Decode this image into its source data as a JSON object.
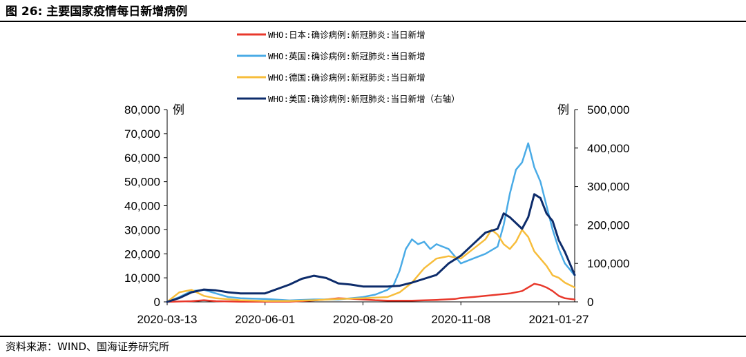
{
  "figure": {
    "title": "图 26:  主要国家疫情每日新增病例",
    "source": "资料来源：WIND、国海证券研究所"
  },
  "chart_data": {
    "type": "line",
    "title": "主要国家疫情每日新增病例",
    "left_axis": {
      "unit": "例",
      "range": [
        0,
        80000
      ],
      "ticks": [
        0,
        10000,
        20000,
        30000,
        40000,
        50000,
        60000,
        70000,
        80000
      ],
      "tick_labels": [
        "0",
        "10,000",
        "20,000",
        "30,000",
        "40,000",
        "50,000",
        "60,000",
        "70,000",
        "80,000"
      ]
    },
    "right_axis": {
      "unit": "例",
      "range": [
        0,
        500000
      ],
      "ticks": [
        0,
        100000,
        200000,
        300000,
        400000,
        500000
      ],
      "tick_labels": [
        "0",
        "100,000",
        "200,000",
        "300,000",
        "400,000",
        "500,000"
      ]
    },
    "x_axis": {
      "range_days": [
        0,
        333
      ],
      "start_date": "2020-03-13",
      "tick_days": [
        0,
        80,
        160,
        240,
        320
      ],
      "tick_labels": [
        "2020-03-13",
        "2020-06-01",
        "2020-08-20",
        "2020-11-08",
        "2021-01-27"
      ]
    },
    "legend_position": "top-center",
    "series": [
      {
        "name": "WHO:日本:确诊病例:新冠肺炎:当日新增",
        "color": "#e8382b",
        "axis": "left",
        "x": [
          0,
          20,
          30,
          40,
          60,
          80,
          100,
          120,
          130,
          140,
          150,
          160,
          170,
          180,
          200,
          220,
          235,
          240,
          250,
          260,
          270,
          280,
          290,
          295,
          300,
          305,
          310,
          315,
          320,
          325,
          333
        ],
        "y": [
          0,
          300,
          700,
          300,
          100,
          50,
          100,
          600,
          1000,
          1500,
          1300,
          1000,
          700,
          500,
          500,
          800,
          1200,
          1600,
          2000,
          2500,
          3000,
          3500,
          4500,
          6000,
          7500,
          7000,
          6000,
          4500,
          2500,
          1500,
          1000
        ]
      },
      {
        "name": "WHO:英国:确诊病例:新冠肺炎:当日新增",
        "color": "#4aabe6",
        "axis": "left",
        "x": [
          0,
          10,
          20,
          30,
          40,
          50,
          60,
          80,
          100,
          120,
          140,
          160,
          170,
          180,
          185,
          190,
          195,
          200,
          205,
          210,
          215,
          220,
          230,
          240,
          250,
          260,
          270,
          275,
          280,
          285,
          290,
          295,
          300,
          305,
          310,
          315,
          320,
          325,
          333
        ],
        "y": [
          0,
          2000,
          4500,
          5000,
          3500,
          2000,
          1500,
          1200,
          600,
          1000,
          1000,
          2000,
          3000,
          5000,
          7000,
          13000,
          22000,
          26000,
          24000,
          25000,
          22000,
          24000,
          22000,
          16000,
          18000,
          20000,
          23000,
          32000,
          45000,
          55000,
          58000,
          66000,
          56000,
          50000,
          40000,
          30000,
          22000,
          16000,
          11000
        ]
      },
      {
        "name": "WHO:德国:确诊病例:新冠肺炎:当日新增",
        "color": "#f7bd3b",
        "axis": "left",
        "x": [
          0,
          10,
          20,
          30,
          40,
          60,
          80,
          100,
          120,
          140,
          160,
          180,
          190,
          200,
          210,
          220,
          230,
          240,
          250,
          260,
          265,
          270,
          275,
          280,
          285,
          290,
          295,
          300,
          310,
          315,
          320,
          325,
          333
        ],
        "y": [
          0,
          4000,
          5000,
          2500,
          1500,
          700,
          400,
          400,
          700,
          1200,
          1500,
          2000,
          4000,
          8000,
          14000,
          18000,
          19000,
          18000,
          22000,
          26000,
          30000,
          28000,
          24000,
          22000,
          25000,
          30000,
          27000,
          21000,
          15000,
          11000,
          10000,
          8000,
          6000
        ]
      },
      {
        "name": "WHO:美国:确诊病例:新冠肺炎:当日新增（右轴）",
        "color": "#0d2c6b",
        "axis": "right",
        "x": [
          0,
          10,
          20,
          30,
          40,
          50,
          60,
          80,
          100,
          110,
          120,
          130,
          140,
          150,
          160,
          170,
          180,
          190,
          200,
          210,
          220,
          230,
          240,
          250,
          260,
          270,
          275,
          280,
          290,
          295,
          300,
          305,
          310,
          315,
          320,
          325,
          333
        ],
        "y": [
          0,
          10000,
          25000,
          32000,
          30000,
          25000,
          22000,
          22000,
          45000,
          60000,
          68000,
          62000,
          48000,
          45000,
          40000,
          40000,
          40000,
          42000,
          50000,
          60000,
          70000,
          100000,
          120000,
          150000,
          180000,
          190000,
          230000,
          220000,
          190000,
          220000,
          280000,
          270000,
          230000,
          210000,
          160000,
          130000,
          70000
        ]
      }
    ]
  }
}
